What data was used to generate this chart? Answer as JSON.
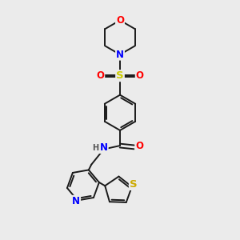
{
  "background_color": "#ebebeb",
  "bond_color": "#1a1a1a",
  "bond_width": 1.4,
  "atom_colors": {
    "N": "#0000ff",
    "O": "#ff0000",
    "S_sulfonyl": "#cccc00",
    "S_thio": "#ccaa00",
    "H": "#555555",
    "C": "#1a1a1a"
  },
  "font_size_atom": 8.5,
  "title": ""
}
